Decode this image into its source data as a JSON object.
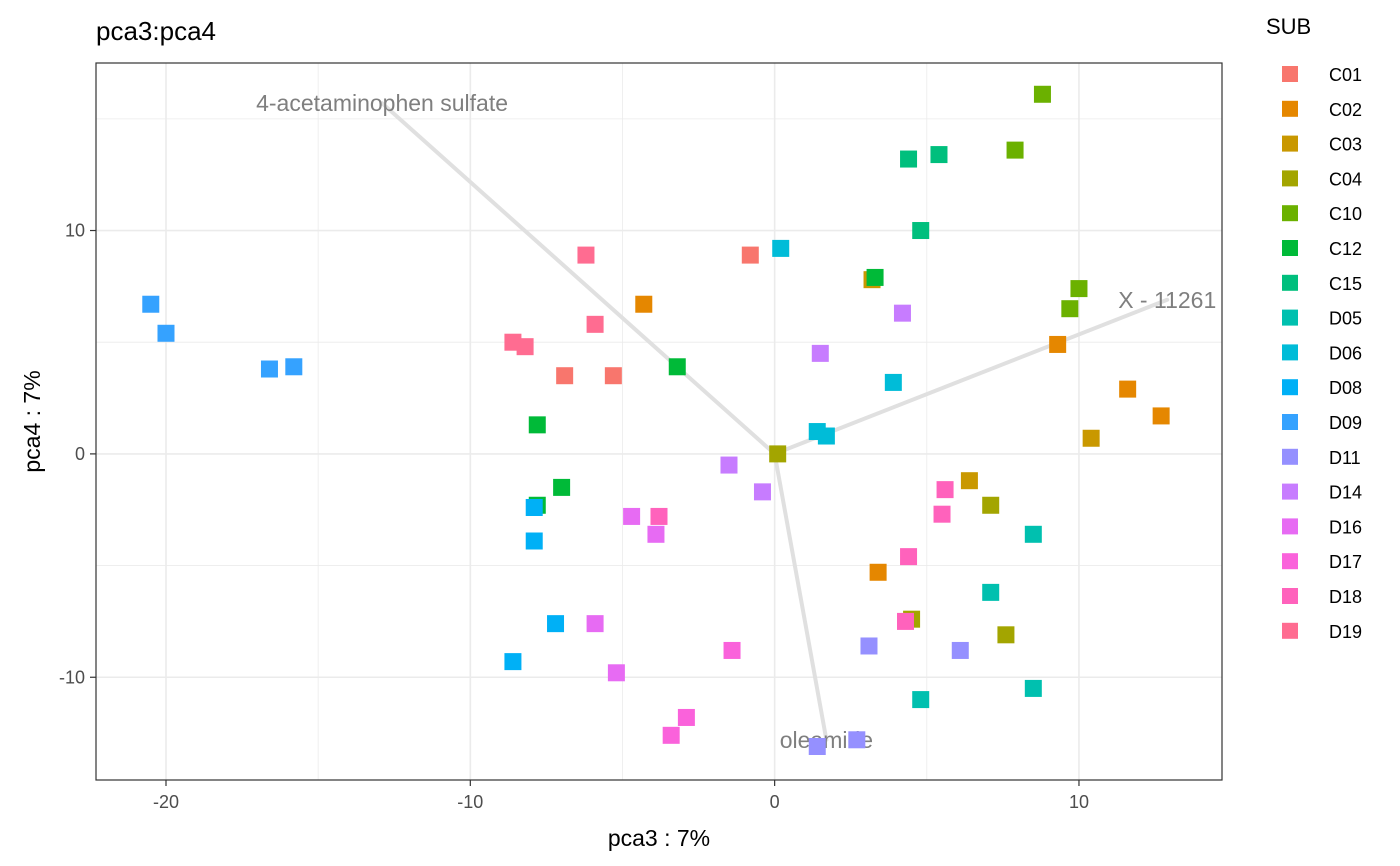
{
  "chart_data": {
    "type": "scatter",
    "title": "pca3:pca4",
    "xlabel": "pca3 : 7%",
    "ylabel": "pca4 : 7%",
    "xlim": [
      -22.3,
      14.7
    ],
    "ylim": [
      -14.6,
      17.5
    ],
    "xticks": [
      -20,
      -10,
      0,
      10
    ],
    "xtick_labels": [
      "-20",
      "-10",
      "0",
      "10"
    ],
    "yticks": [
      -10,
      0,
      10
    ],
    "ytick_labels": [
      "-10",
      "0",
      "10"
    ],
    "grid": true,
    "marker": "square",
    "legend": {
      "title": "SUB",
      "position": "right"
    },
    "loadings": [
      {
        "label": "4-acetaminophen sulfate",
        "x": -12.9,
        "y": 15.7
      },
      {
        "label": "X - 11261",
        "x": 12.9,
        "y": 6.9
      },
      {
        "label": "oleamide",
        "x": 1.7,
        "y": -12.8
      }
    ],
    "series": [
      {
        "name": "C01",
        "color": "#F8766D",
        "points": [
          [
            -0.8,
            8.9
          ],
          [
            -6.9,
            3.5
          ],
          [
            -5.3,
            3.5
          ]
        ]
      },
      {
        "name": "C02",
        "color": "#E58700",
        "points": [
          [
            -4.3,
            6.7
          ],
          [
            9.3,
            4.9
          ],
          [
            11.6,
            2.9
          ],
          [
            12.7,
            1.7
          ],
          [
            3.4,
            -5.3
          ]
        ]
      },
      {
        "name": "C03",
        "color": "#C99800",
        "points": [
          [
            3.2,
            7.8
          ],
          [
            10.4,
            0.7
          ],
          [
            6.4,
            -1.2
          ]
        ]
      },
      {
        "name": "C04",
        "color": "#A3A500",
        "points": [
          [
            0.1,
            0.0
          ],
          [
            7.1,
            -2.3
          ],
          [
            4.5,
            -7.4
          ],
          [
            7.6,
            -8.1
          ]
        ]
      },
      {
        "name": "C10",
        "color": "#6BB100",
        "points": [
          [
            8.8,
            16.1
          ],
          [
            7.9,
            13.6
          ],
          [
            10.0,
            7.4
          ],
          [
            9.7,
            6.5
          ]
        ]
      },
      {
        "name": "C12",
        "color": "#00BA38",
        "points": [
          [
            3.3,
            7.9
          ],
          [
            -3.2,
            3.9
          ],
          [
            -7.8,
            1.3
          ],
          [
            -7.8,
            -2.3
          ],
          [
            -7.0,
            -1.5
          ]
        ]
      },
      {
        "name": "C15",
        "color": "#00BF7D",
        "points": [
          [
            4.4,
            13.2
          ],
          [
            5.4,
            13.4
          ],
          [
            4.8,
            10.0
          ]
        ]
      },
      {
        "name": "D05",
        "color": "#00C0AF",
        "points": [
          [
            8.5,
            -3.6
          ],
          [
            7.1,
            -6.2
          ],
          [
            4.8,
            -11.0
          ],
          [
            8.5,
            -10.5
          ]
        ]
      },
      {
        "name": "D06",
        "color": "#00BCD8",
        "points": [
          [
            0.2,
            9.2
          ],
          [
            3.9,
            3.2
          ],
          [
            1.4,
            1.0
          ],
          [
            1.7,
            0.8
          ]
        ]
      },
      {
        "name": "D08",
        "color": "#00B0F6",
        "points": [
          [
            -7.9,
            -2.4
          ],
          [
            -7.9,
            -3.9
          ],
          [
            -7.2,
            -7.6
          ],
          [
            -8.6,
            -9.3
          ]
        ]
      },
      {
        "name": "D09",
        "color": "#35A2FF",
        "points": [
          [
            -20.5,
            6.7
          ],
          [
            -20.0,
            5.4
          ],
          [
            -16.6,
            3.8
          ],
          [
            -15.8,
            3.9
          ]
        ]
      },
      {
        "name": "D11",
        "color": "#9590FF",
        "points": [
          [
            3.1,
            -8.6
          ],
          [
            6.1,
            -8.8
          ],
          [
            2.7,
            -12.8
          ],
          [
            1.4,
            -13.1
          ]
        ]
      },
      {
        "name": "D14",
        "color": "#C77CFF",
        "points": [
          [
            4.2,
            6.3
          ],
          [
            1.5,
            4.5
          ],
          [
            -1.5,
            -0.5
          ],
          [
            -0.4,
            -1.7
          ]
        ]
      },
      {
        "name": "D16",
        "color": "#E76BF3",
        "points": [
          [
            -4.7,
            -2.8
          ],
          [
            -3.9,
            -3.6
          ],
          [
            -5.9,
            -7.6
          ],
          [
            -5.2,
            -9.8
          ]
        ]
      },
      {
        "name": "D17",
        "color": "#FA62DB",
        "points": [
          [
            -1.4,
            -8.8
          ],
          [
            -2.9,
            -11.8
          ],
          [
            -3.4,
            -12.6
          ]
        ]
      },
      {
        "name": "D18",
        "color": "#FF62BC",
        "points": [
          [
            5.6,
            -1.6
          ],
          [
            5.5,
            -2.7
          ],
          [
            4.4,
            -4.6
          ],
          [
            4.3,
            -7.5
          ],
          [
            -3.8,
            -2.8
          ]
        ]
      },
      {
        "name": "D19",
        "color": "#FF6C91",
        "points": [
          [
            -6.2,
            8.9
          ],
          [
            -5.9,
            5.8
          ],
          [
            -8.6,
            5.0
          ],
          [
            -8.2,
            4.8
          ]
        ]
      }
    ]
  }
}
